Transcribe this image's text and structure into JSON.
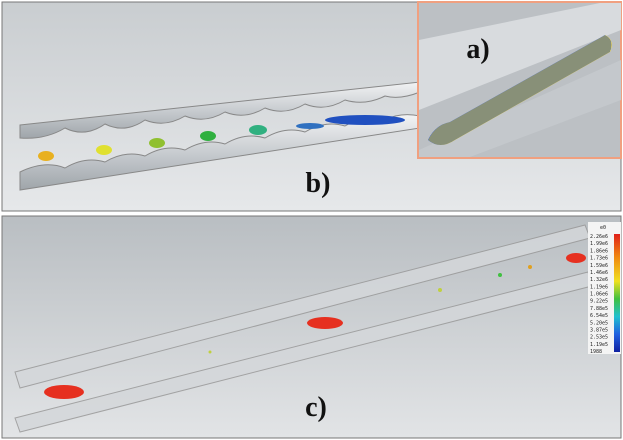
{
  "panels": {
    "a": {
      "label": "a)"
    },
    "b": {
      "label": "b)"
    },
    "c": {
      "label": "c)"
    }
  },
  "colorbar": {
    "title": "e0",
    "labels": [
      "2.26e6",
      "1.99e6",
      "1.86e6",
      "1.73e6",
      "1.59e6",
      "1.46e6",
      "1.32e6",
      "1.19e6",
      "1.06e6",
      "9.22e5",
      "7.88e5",
      "6.54e5",
      "5.20e5",
      "3.87e5",
      "2.53e5",
      "1.19e5",
      "1988"
    ]
  }
}
